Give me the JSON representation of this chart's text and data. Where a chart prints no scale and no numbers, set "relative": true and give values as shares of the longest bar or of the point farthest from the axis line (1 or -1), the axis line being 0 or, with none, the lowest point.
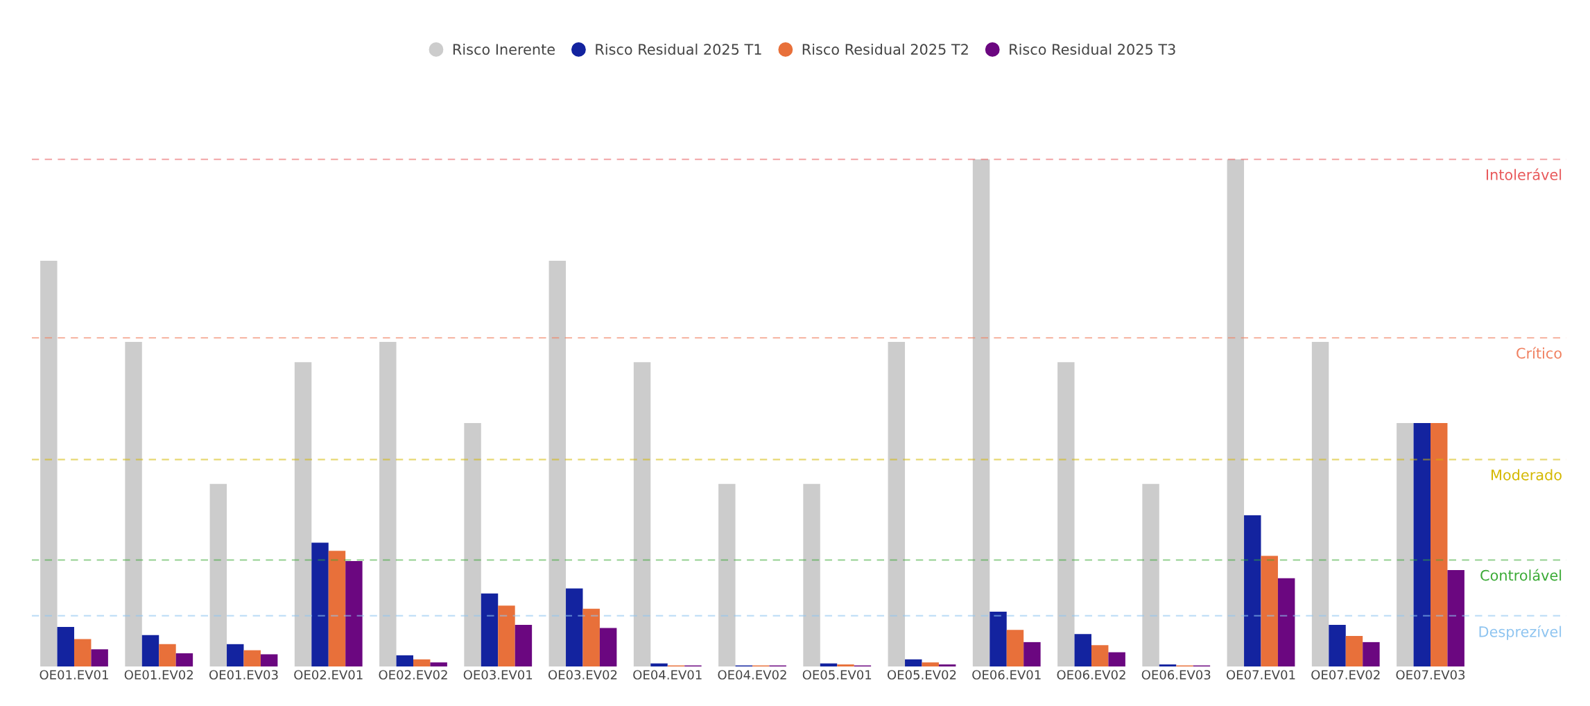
{
  "chart_data": {
    "type": "bar",
    "relative": true,
    "categories": [
      "OE01.EV01",
      "OE01.EV02",
      "OE01.EV03",
      "OE02.EV01",
      "OE02.EV02",
      "OE03.EV01",
      "OE03.EV02",
      "OE04.EV01",
      "OE04.EV02",
      "OE05.EV01",
      "OE05.EV02",
      "OE06.EV01",
      "OE06.EV02",
      "OE06.EV03",
      "OE07.EV01",
      "OE07.EV02",
      "OE07.EV03"
    ],
    "series": [
      {
        "name": "Risco Inerente",
        "color": "#cccccc",
        "values": [
          0.8,
          0.64,
          0.36,
          0.6,
          0.64,
          0.48,
          0.8,
          0.6,
          0.36,
          0.36,
          0.64,
          1.0,
          0.6,
          0.36,
          1.0,
          0.64,
          0.48
        ]
      },
      {
        "name": "Risco Residual 2025 T1",
        "color": "#13239f",
        "values": [
          0.078,
          0.062,
          0.044,
          0.244,
          0.022,
          0.144,
          0.154,
          0.006,
          0.002,
          0.006,
          0.014,
          0.108,
          0.064,
          0.004,
          0.298,
          0.082,
          0.48
        ]
      },
      {
        "name": "Risco Residual 2025 T2",
        "color": "#e8703a",
        "values": [
          0.054,
          0.044,
          0.032,
          0.228,
          0.014,
          0.12,
          0.114,
          0.002,
          0.002,
          0.004,
          0.008,
          0.072,
          0.042,
          0.002,
          0.218,
          0.06,
          0.48
        ]
      },
      {
        "name": "Risco Residual 2025 T3",
        "color": "#6b0780",
        "values": [
          0.034,
          0.026,
          0.024,
          0.208,
          0.008,
          0.082,
          0.076,
          0.002,
          0.002,
          0.002,
          0.004,
          0.048,
          0.028,
          0.002,
          0.174,
          0.048,
          0.19
        ]
      }
    ],
    "ref_lines": [
      {
        "axis": "y",
        "value": 1.0,
        "label": "Intolerável",
        "color": "#e8595b",
        "line_style": "dashed"
      },
      {
        "axis": "y",
        "value": 0.648,
        "label": "Crítico",
        "color": "#f08060",
        "line_style": "dashed"
      },
      {
        "axis": "y",
        "value": 0.408,
        "label": "Moderado",
        "color": "#d4b800",
        "line_style": "dashed"
      },
      {
        "axis": "y",
        "value": 0.21,
        "label": "Controlável",
        "color": "#3aaa35",
        "line_style": "dashed"
      },
      {
        "axis": "y",
        "value": 0.1,
        "label": "Desprezível",
        "color": "#8ec4f0",
        "line_style": "dashed"
      }
    ],
    "legend": "top",
    "grid": false
  }
}
